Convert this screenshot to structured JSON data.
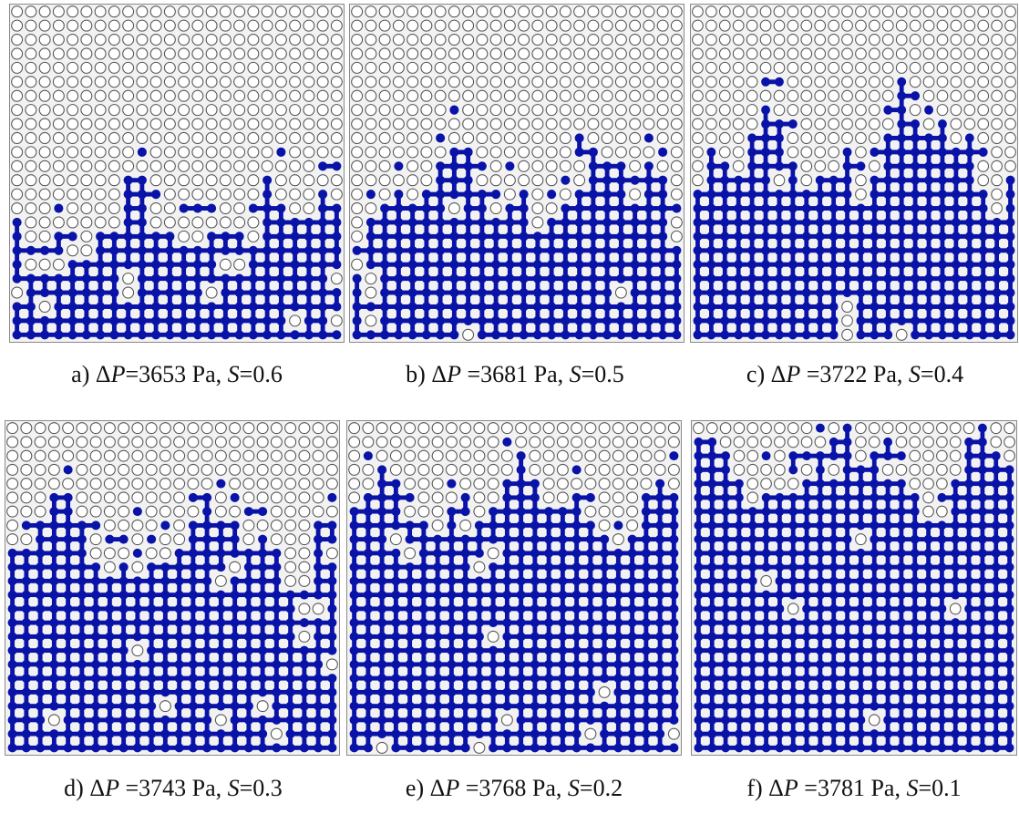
{
  "panels": [
    {
      "id": "a",
      "label": "a)",
      "dp_value": "=3653 Pa,",
      "s_value": "=0.6",
      "saturation": 0.6
    },
    {
      "id": "b",
      "label": "b)",
      "dp_value": " =3681 Pa,",
      "s_value": "=0.5",
      "saturation": 0.5
    },
    {
      "id": "c",
      "label": "c)",
      "dp_value": " =3722 Pa,",
      "s_value": "=0.4",
      "saturation": 0.4
    },
    {
      "id": "d",
      "label": "d)",
      "dp_value": " =3743 Pa,",
      "s_value": "=0.3",
      "saturation": 0.3
    },
    {
      "id": "e",
      "label": "e)",
      "dp_value": " =3768 Pa,",
      "s_value": "=0.2",
      "saturation": 0.2
    },
    {
      "id": "f",
      "label": "f)",
      "dp_value": " =3781 Pa,",
      "s_value": "=0.1",
      "saturation": 0.1
    }
  ],
  "symbols": {
    "delta": "Δ",
    "p": "P",
    "s": "S"
  },
  "colors": {
    "invaded": "#0a13a8",
    "empty_fill": "#ffffff",
    "empty_stroke": "#555555",
    "panel_bg": "#f2f2f2"
  }
}
